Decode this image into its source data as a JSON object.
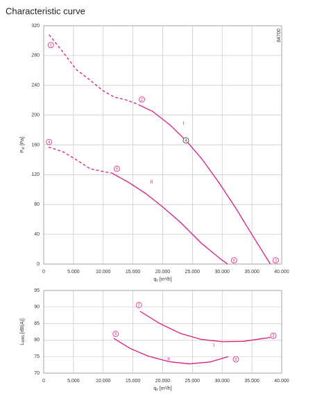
{
  "chart_data": [
    {
      "type": "line",
      "title": "Characteristic curve",
      "code": "84700",
      "xlabel": {
        "symbol": "q",
        "subscript": "v",
        "unit": "[m³/h]"
      },
      "ylabel": {
        "symbol": "P",
        "subscript": "sf",
        "unit": "[Pa]"
      },
      "xlim": [
        0,
        40000
      ],
      "xticks": [
        0,
        {
          "value": 5000,
          "label": "5.000"
        },
        {
          "value": 10000,
          "label": "10.000"
        },
        {
          "value": 15000,
          "label": "15.000"
        },
        {
          "value": 20000,
          "label": "20.000"
        },
        {
          "value": 25000,
          "label": "25.000"
        },
        {
          "value": 30000,
          "label": "30.000"
        },
        {
          "value": 35000,
          "label": "35.000"
        },
        {
          "value": 40000,
          "label": "40.000"
        }
      ],
      "ylim": [
        0,
        320
      ],
      "yticks": [
        0,
        40,
        80,
        120,
        160,
        200,
        240,
        280,
        320
      ],
      "grid": true,
      "color": "#d81b7f",
      "series": [
        {
          "name": "I",
          "label_x": 23500,
          "label_y": 189,
          "segments": [
            {
              "dashed": true,
              "x": [
                900,
                3200,
                5500,
                7800,
                9900,
                11900,
                13600,
                15400,
                16200
              ],
              "values": [
                308,
                285,
                261,
                247,
                233,
                224,
                221,
                216,
                213
              ]
            },
            {
              "dashed": false,
              "x": [
                16200,
                18300,
                21200,
                23900,
                26500,
                29400,
                32300,
                35200,
                38100
              ],
              "values": [
                213,
                205,
                187,
                166,
                142,
                110,
                75,
                37,
                0
              ]
            }
          ]
        },
        {
          "name": "II",
          "label_x": 18100,
          "label_y": 110,
          "segments": [
            {
              "dashed": true,
              "x": [
                800,
                3200,
                5500,
                7800,
                10100,
                11500
              ],
              "values": [
                157,
                151,
                140,
                128,
                124,
                122
              ]
            },
            {
              "dashed": false,
              "x": [
                11500,
                14200,
                17100,
                20100,
                23000,
                26500,
                29700,
                30900
              ],
              "values": [
                122,
                110,
                95,
                76,
                56,
                28,
                7,
                0
              ]
            }
          ]
        }
      ],
      "annotations": [
        {
          "text": "1",
          "x": 1200,
          "y": 294,
          "color": "#d81b7f"
        },
        {
          "text": "2",
          "x": 16500,
          "y": 221,
          "color": "#d81b7f"
        },
        {
          "text": "4",
          "x": 23900,
          "y": 166,
          "color": "#333333"
        },
        {
          "text": "3",
          "x": 39000,
          "y": 5,
          "color": "#d81b7f"
        },
        {
          "text": "6",
          "x": 32000,
          "y": 5,
          "color": "#d81b7f"
        },
        {
          "text": "5",
          "x": 12300,
          "y": 128,
          "color": "#d81b7f"
        },
        {
          "text": "4",
          "x": 900,
          "y": 164,
          "color": "#d81b7f"
        }
      ]
    },
    {
      "type": "line",
      "xlabel": {
        "symbol": "q",
        "subscript": "v",
        "unit": "[m³/h]"
      },
      "ylabel": {
        "symbol": "L",
        "subscript": "WA5",
        "unit": "[dB(A)]"
      },
      "xlim": [
        0,
        40000
      ],
      "xticks": [
        0,
        {
          "value": 5000,
          "label": "5.000"
        },
        {
          "value": 10000,
          "label": "10.000"
        },
        {
          "value": 15000,
          "label": "15.000"
        },
        {
          "value": 20000,
          "label": "20.000"
        },
        {
          "value": 25000,
          "label": "25.000"
        },
        {
          "value": 30000,
          "label": "30.000"
        },
        {
          "value": 35000,
          "label": "35.000"
        },
        {
          "value": 40000,
          "label": "40.000"
        }
      ],
      "ylim": [
        70,
        95
      ],
      "yticks": [
        70,
        75,
        80,
        85,
        90,
        95
      ],
      "grid": true,
      "color": "#d81b7f",
      "series": [
        {
          "name": "I",
          "label_x": 28600,
          "label_y": 78.4,
          "segments": [
            {
              "dashed": false,
              "x": [
                16200,
                19500,
                23000,
                26500,
                30000,
                33500,
                38100
              ],
              "values": [
                88.7,
                85,
                82,
                80.2,
                79.5,
                79.6,
                80.8
              ]
            }
          ]
        },
        {
          "name": "II",
          "label_x": 21000,
          "label_y": 74.2,
          "segments": [
            {
              "dashed": false,
              "x": [
                11800,
                14500,
                17500,
                21000,
                24500,
                28000,
                31000
              ],
              "values": [
                80.5,
                77.5,
                75.2,
                73.5,
                72.8,
                73.4,
                75
              ]
            }
          ]
        }
      ],
      "annotations": [
        {
          "text": "2",
          "x": 16000,
          "y": 90.6,
          "color": "#d81b7f"
        },
        {
          "text": "3",
          "x": 38600,
          "y": 81.3,
          "color": "#d81b7f"
        },
        {
          "text": "5",
          "x": 12100,
          "y": 81.9,
          "color": "#d81b7f"
        },
        {
          "text": "6",
          "x": 32300,
          "y": 74.2,
          "color": "#d81b7f"
        }
      ]
    }
  ]
}
